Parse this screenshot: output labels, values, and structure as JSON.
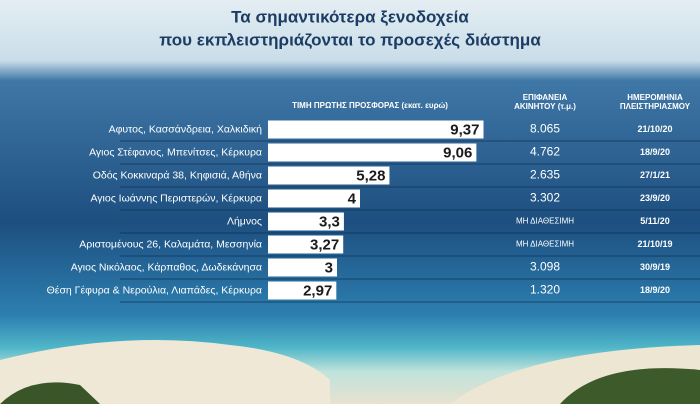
{
  "chart_data": {
    "type": "bar",
    "orientation": "horizontal",
    "title": [
      "Τα σημαντικότερα ξενοδοχεία",
      "που εκπλειστηριάζονται το προσεχές διάστημα"
    ],
    "value_header": "ΤΙΜΗ ΠΡΩΤΗΣ ΠΡΟΣΦΟΡΑΣ (εκατ. ευρώ)",
    "area_header": [
      "ΕΠΙΦΑΝΕΙΑ",
      "ΑΚΙΝΗΤΟΥ (τ.μ.)"
    ],
    "date_header": [
      "ΗΜΕΡΟΜΗΝΙΑ",
      "ΠΛΕΙΣΤΗΡΙΑΣΜΟΥ"
    ],
    "categories": [
      "Αφυτος, Κασσάνδρεια, Χαλκιδική",
      "Αγιος Στέφανος, Μπενίτσες, Κέρκυρα",
      "Οδός Κοκκιναρά 38, Κηφισιά, Αθήνα",
      "Αγιος Ιωάννης Περιστερών, Κέρκυρα",
      "Λήμνος",
      "Αριστομένους 26, Καλαμάτα, Μεσσηνία",
      "Αγιος Νικόλαος, Κάρπαθος, Δωδεκάνησα",
      "Θέση Γέφυρα & Νερούλια, Λιαπάδες, Κέρκυρα"
    ],
    "values": [
      9.37,
      9.06,
      5.28,
      4,
      3.3,
      3.27,
      3,
      2.97
    ],
    "value_labels": [
      "9,37",
      "9,06",
      "5,28",
      "4",
      "3,3",
      "3,27",
      "3",
      "2,97"
    ],
    "color": "#ffffff",
    "areas": [
      "8.065",
      "4.762",
      "2.635",
      "3.302",
      "ΜΗ ΔΙΑΘΕΣΙΜΗ",
      "ΜΗ ΔΙΑΘΕΣΙΜΗ",
      "3.098",
      "1.320"
    ],
    "dates": [
      "21/10/20",
      "18/9/20",
      "27/1/21",
      "23/9/20",
      "5/11/20",
      "21/10/19",
      "30/9/19",
      "18/9/20"
    ]
  }
}
